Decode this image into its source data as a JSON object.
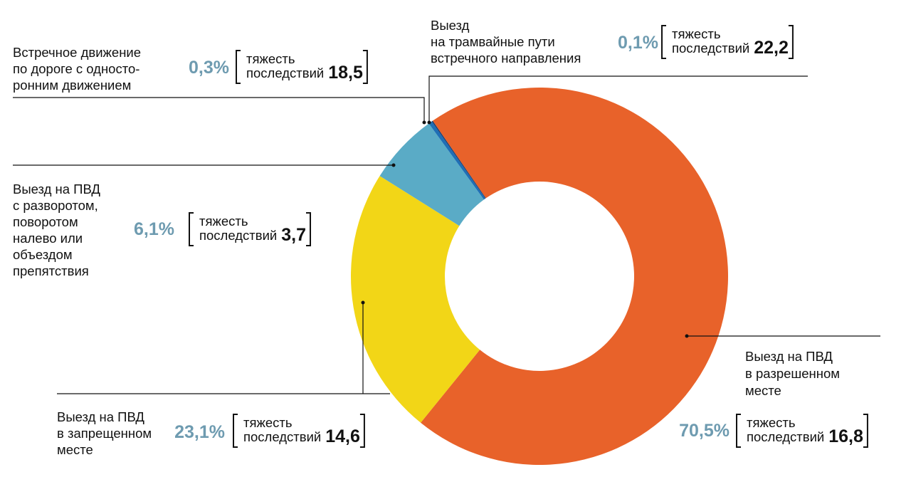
{
  "chart_data": {
    "type": "donut",
    "severity_caption": [
      "тяжесть",
      "последствий"
    ],
    "categories": [
      [
        "Выезд на ПВД",
        "в разрешенном",
        "месте"
      ],
      [
        "Выезд на ПВД",
        "в запрещенном",
        "месте"
      ],
      [
        "Выезд на ПВД",
        "с разворотом,",
        "поворотом",
        "налево или",
        "объездом",
        "препятствия"
      ],
      [
        "Встречное движение",
        "по дороге с односто-",
        "ронним движением"
      ],
      [
        "Выезд",
        "на трамвайные пути",
        "встречного направления"
      ]
    ],
    "values": [
      70.5,
      23.1,
      6.1,
      0.3,
      0.1
    ],
    "value_labels": [
      "70,5%",
      "23,1%",
      "6,1%",
      "0,3%",
      "0,1%"
    ],
    "severity": [
      16.8,
      14.6,
      3.7,
      18.5,
      22.2
    ],
    "severity_labels": [
      "16,8",
      "14,6",
      "3,7",
      "18,5",
      "22,2"
    ],
    "colors": [
      "#e8622a",
      "#f2d617",
      "#5aabc6",
      "#1f6fb5",
      "#1b3f73"
    ]
  }
}
